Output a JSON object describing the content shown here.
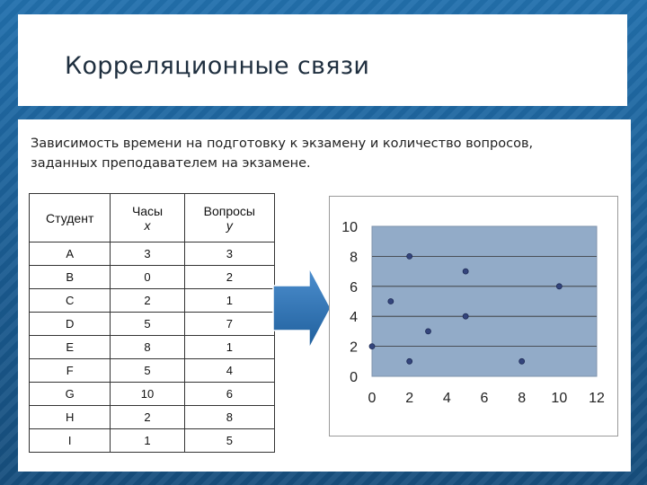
{
  "slide": {
    "title": "Корреляционные связи",
    "description_line1": "Зависимость времени на подготовку к экзамену и количество вопросов,",
    "description_line2": "заданных преподавателем на экзамене."
  },
  "table": {
    "headers": {
      "student": "Студент",
      "hours": "Часы",
      "hours_var": "x",
      "questions": "Вопросы",
      "questions_var": "y"
    },
    "rows": [
      {
        "student": "A",
        "x": "3",
        "y": "3"
      },
      {
        "student": "B",
        "x": "0",
        "y": "2"
      },
      {
        "student": "C",
        "x": "2",
        "y": "1"
      },
      {
        "student": "D",
        "x": "5",
        "y": "7"
      },
      {
        "student": "E",
        "x": "8",
        "y": "1"
      },
      {
        "student": "F",
        "x": "5",
        "y": "4"
      },
      {
        "student": "G",
        "x": "10",
        "y": "6"
      },
      {
        "student": "H",
        "x": "2",
        "y": "8"
      },
      {
        "student": "I",
        "x": "1",
        "y": "5"
      }
    ]
  },
  "chart_data": {
    "type": "scatter",
    "x": [
      3,
      0,
      2,
      5,
      8,
      5,
      10,
      2,
      1
    ],
    "y": [
      3,
      2,
      1,
      7,
      1,
      4,
      6,
      8,
      5
    ],
    "xlim": [
      0,
      12
    ],
    "ylim": [
      0,
      10
    ],
    "xticks": [
      0,
      2,
      4,
      6,
      8,
      10,
      12
    ],
    "yticks": [
      0,
      2,
      4,
      6,
      8,
      10
    ],
    "grid": "horizontal",
    "title": "",
    "xlabel": "",
    "ylabel": "",
    "colors": {
      "plot_bg": "#92abc8",
      "point": "#34457d",
      "grid": "#333333"
    }
  },
  "theme": {
    "accent": "#1c5f94",
    "arrow": "#2b6fb0"
  }
}
